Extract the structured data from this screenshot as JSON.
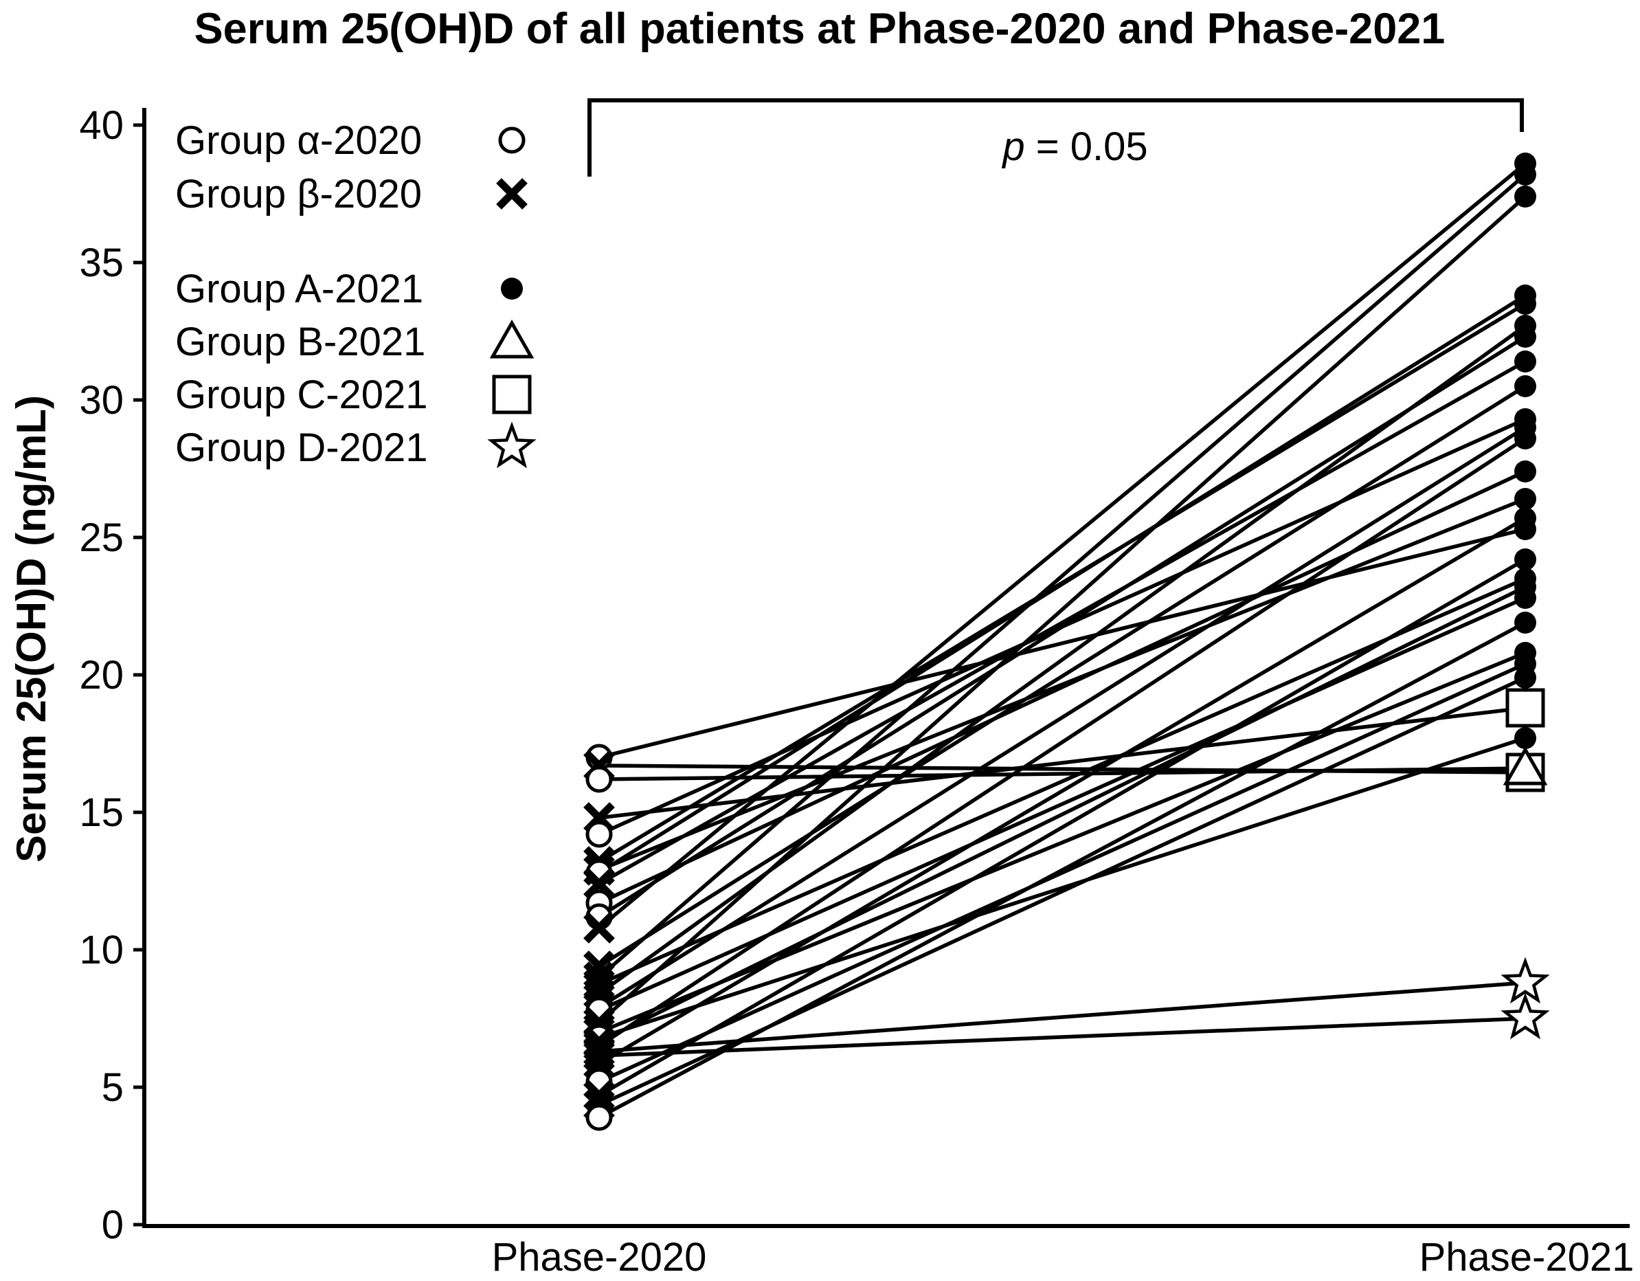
{
  "chart_data": {
    "type": "line",
    "subtype": "paired-slope-chart",
    "title": "Serum 25(OH)D of all patients at Phase-2020 and Phase-2021",
    "ylabel": "Serum 25(OH)D (ng/mL)",
    "xlabel": "",
    "categories": [
      "Phase-2020",
      "Phase-2021"
    ],
    "ylim": [
      0,
      40
    ],
    "yticks": [
      40,
      35,
      30,
      25,
      20,
      15,
      10,
      5,
      0
    ],
    "grid": false,
    "legend_position": "top-left",
    "legend": [
      {
        "label": "Group α-2020",
        "marker": "open-circle"
      },
      {
        "label": "Group β-2020",
        "marker": "x"
      },
      {
        "label": "Group A-2021",
        "marker": "filled-circle"
      },
      {
        "label": "Group B-2021",
        "marker": "open-triangle"
      },
      {
        "label": "Group C-2021",
        "marker": "open-square"
      },
      {
        "label": "Group D-2021",
        "marker": "open-star"
      }
    ],
    "annotation": {
      "italic": "p",
      "rest": " = 0.05"
    },
    "series": [
      {
        "p2020": 17.0,
        "m2020": "open-circle",
        "p2021": 25.3,
        "m2021": "filled-circle"
      },
      {
        "p2020": 16.7,
        "m2020": "x",
        "p2021": 16.45,
        "m2021": "open-square"
      },
      {
        "p2020": 16.2,
        "m2020": "open-circle",
        "p2021": 16.6,
        "m2021": "open-triangle"
      },
      {
        "p2020": 14.8,
        "m2020": "x",
        "p2021": 18.8,
        "m2021": "open-square"
      },
      {
        "p2020": 14.2,
        "m2020": "open-circle",
        "p2021": 29.3,
        "m2021": "filled-circle"
      },
      {
        "p2020": 13.2,
        "m2020": "x",
        "p2021": 33.5,
        "m2021": "filled-circle"
      },
      {
        "p2020": 12.9,
        "m2020": "x",
        "p2021": 26.4,
        "m2021": "filled-circle"
      },
      {
        "p2020": 12.8,
        "m2020": "open-circle",
        "p2021": 33.8,
        "m2021": "filled-circle"
      },
      {
        "p2020": 12.4,
        "m2020": "x",
        "p2021": 31.4,
        "m2021": "filled-circle"
      },
      {
        "p2020": 11.7,
        "m2020": "open-circle",
        "p2021": 27.4,
        "m2021": "filled-circle"
      },
      {
        "p2020": 11.2,
        "m2020": "open-circle",
        "p2021": 32.3,
        "m2021": "filled-circle"
      },
      {
        "p2020": 10.8,
        "m2020": "x",
        "p2021": 38.6,
        "m2021": "filled-circle"
      },
      {
        "p2020": 9.4,
        "m2020": "x",
        "p2021": 30.5,
        "m2021": "filled-circle"
      },
      {
        "p2020": 9.0,
        "m2020": "x",
        "p2021": 38.2,
        "m2021": "filled-circle"
      },
      {
        "p2020": 8.75,
        "m2020": "x",
        "p2021": 23.5,
        "m2021": "filled-circle"
      },
      {
        "p2020": 8.4,
        "m2020": "x",
        "p2021": 32.7,
        "m2021": "filled-circle"
      },
      {
        "p2020": 7.9,
        "m2020": "x",
        "p2021": 29.0,
        "m2021": "filled-circle"
      },
      {
        "p2020": 7.8,
        "m2020": "open-circle",
        "p2021": 22.8,
        "m2021": "filled-circle"
      },
      {
        "p2020": 7.35,
        "m2020": "x",
        "p2021": 37.4,
        "m2021": "filled-circle"
      },
      {
        "p2020": 7.0,
        "m2020": "x",
        "p2021": 20.8,
        "m2021": "filled-circle"
      },
      {
        "p2020": 6.8,
        "m2020": "open-circle",
        "p2021": 17.7,
        "m2021": "filled-circle"
      },
      {
        "p2020": 6.65,
        "m2020": "x",
        "p2021": 23.2,
        "m2021": "filled-circle"
      },
      {
        "p2020": 6.5,
        "m2020": "x",
        "p2021": 28.6,
        "m2021": "filled-circle"
      },
      {
        "p2020": 6.3,
        "m2020": "x",
        "p2021": 8.8,
        "m2021": "open-star"
      },
      {
        "p2020": 6.15,
        "m2020": "x",
        "p2021": 7.5,
        "m2021": "open-star"
      },
      {
        "p2020": 5.85,
        "m2020": "x",
        "p2021": 25.7,
        "m2021": "filled-circle"
      },
      {
        "p2020": 5.2,
        "m2020": "open-circle",
        "p2021": 20.4,
        "m2021": "filled-circle"
      },
      {
        "p2020": 4.7,
        "m2020": "x",
        "p2021": 24.2,
        "m2021": "filled-circle"
      },
      {
        "p2020": 4.35,
        "m2020": "x",
        "p2021": 19.9,
        "m2021": "filled-circle"
      },
      {
        "p2020": 3.9,
        "m2020": "open-circle",
        "p2021": 21.9,
        "m2021": "filled-circle"
      }
    ],
    "colors": {
      "ink": "#000000",
      "background": "#ffffff"
    }
  }
}
